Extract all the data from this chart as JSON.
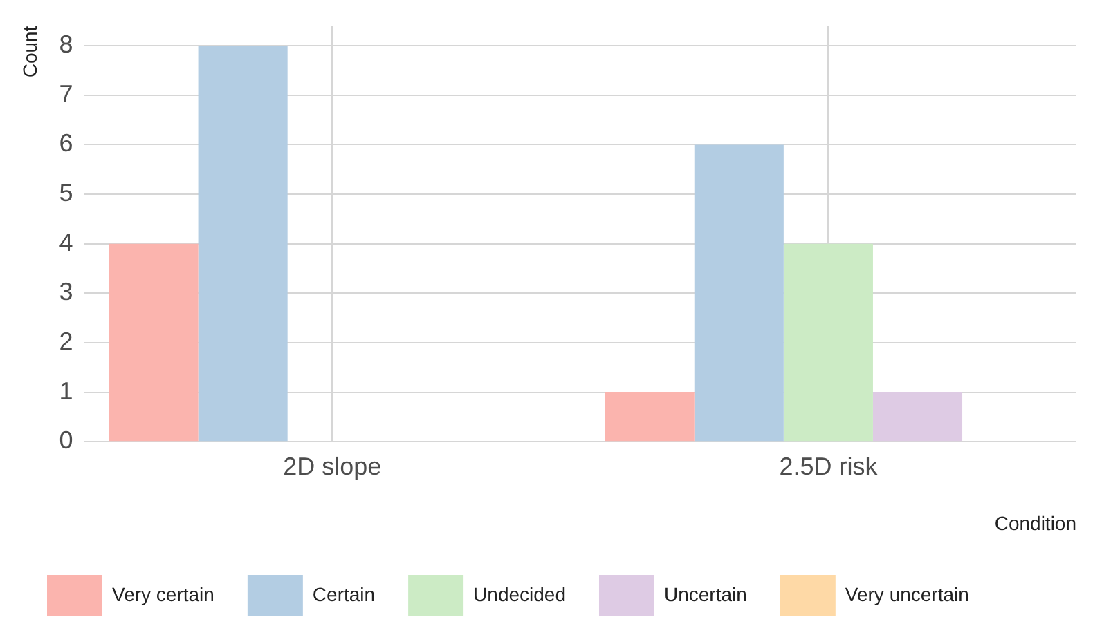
{
  "chart_data": {
    "type": "bar",
    "xlabel": "Condition",
    "ylabel": "Count",
    "categories": [
      "2D slope",
      "2.5D risk"
    ],
    "series": [
      {
        "name": "Very certain",
        "color": "#fbb4ae",
        "values": [
          4,
          1
        ]
      },
      {
        "name": "Certain",
        "color": "#b3cde3",
        "values": [
          8,
          6
        ]
      },
      {
        "name": "Undecided",
        "color": "#ccebc5",
        "values": [
          0,
          4
        ]
      },
      {
        "name": "Uncertain",
        "color": "#decbe4",
        "values": [
          0,
          1
        ]
      },
      {
        "name": "Very uncertain",
        "color": "#fed9a6",
        "values": [
          0,
          0
        ]
      }
    ],
    "ylim": [
      0,
      8.4
    ],
    "yticks": [
      0,
      1,
      2,
      3,
      4,
      5,
      6,
      7,
      8
    ],
    "grid": true,
    "legend": "bottom"
  }
}
